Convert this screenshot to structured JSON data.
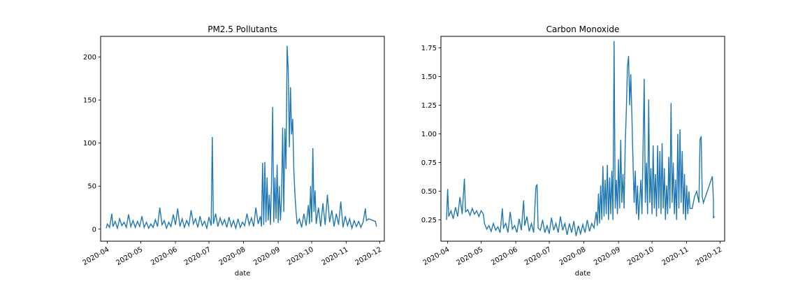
{
  "chart_data": [
    {
      "type": "line",
      "title": "PM2.5 Pollutants",
      "xlabel": "date",
      "ylabel": "",
      "xlim": [
        "2020-03-26",
        "2020-12-05"
      ],
      "ylim": [
        -14,
        224
      ],
      "x_ticks": [
        "2020-04",
        "2020-05",
        "2020-06",
        "2020-07",
        "2020-08",
        "2020-09",
        "2020-10",
        "2020-11",
        "2020-12"
      ],
      "y_ticks": [
        0,
        50,
        100,
        150,
        200
      ],
      "color": "#1f77b4",
      "points": [
        [
          "2020-03-31",
          1
        ],
        [
          "2020-04-01",
          6
        ],
        [
          "2020-04-03",
          2
        ],
        [
          "2020-04-05",
          18
        ],
        [
          "2020-04-06",
          3
        ],
        [
          "2020-04-08",
          9
        ],
        [
          "2020-04-10",
          1
        ],
        [
          "2020-04-12",
          12
        ],
        [
          "2020-04-14",
          4
        ],
        [
          "2020-04-16",
          8
        ],
        [
          "2020-04-18",
          2
        ],
        [
          "2020-04-20",
          17
        ],
        [
          "2020-04-22",
          3
        ],
        [
          "2020-04-24",
          10
        ],
        [
          "2020-04-26",
          2
        ],
        [
          "2020-04-28",
          9
        ],
        [
          "2020-04-30",
          3
        ],
        [
          "2020-05-02",
          15
        ],
        [
          "2020-05-04",
          2
        ],
        [
          "2020-05-06",
          8
        ],
        [
          "2020-05-08",
          1
        ],
        [
          "2020-05-10",
          6
        ],
        [
          "2020-05-12",
          2
        ],
        [
          "2020-05-14",
          11
        ],
        [
          "2020-05-16",
          3
        ],
        [
          "2020-05-18",
          25
        ],
        [
          "2020-05-20",
          5
        ],
        [
          "2020-05-22",
          10
        ],
        [
          "2020-05-24",
          1
        ],
        [
          "2020-05-26",
          8
        ],
        [
          "2020-05-28",
          3
        ],
        [
          "2020-05-30",
          17
        ],
        [
          "2020-06-01",
          5
        ],
        [
          "2020-06-03",
          24
        ],
        [
          "2020-06-05",
          3
        ],
        [
          "2020-06-07",
          12
        ],
        [
          "2020-06-09",
          2
        ],
        [
          "2020-06-11",
          10
        ],
        [
          "2020-06-13",
          4
        ],
        [
          "2020-06-15",
          22
        ],
        [
          "2020-06-17",
          6
        ],
        [
          "2020-06-19",
          12
        ],
        [
          "2020-06-21",
          2
        ],
        [
          "2020-06-23",
          15
        ],
        [
          "2020-06-25",
          4
        ],
        [
          "2020-06-27",
          9
        ],
        [
          "2020-06-29",
          1
        ],
        [
          "2020-07-01",
          14
        ],
        [
          "2020-07-03",
          4
        ],
        [
          "2020-07-04",
          107
        ],
        [
          "2020-07-05",
          6
        ],
        [
          "2020-07-07",
          18
        ],
        [
          "2020-07-09",
          3
        ],
        [
          "2020-07-11",
          13
        ],
        [
          "2020-07-13",
          5
        ],
        [
          "2020-07-15",
          11
        ],
        [
          "2020-07-17",
          2
        ],
        [
          "2020-07-19",
          14
        ],
        [
          "2020-07-21",
          3
        ],
        [
          "2020-07-23",
          10
        ],
        [
          "2020-07-25",
          1
        ],
        [
          "2020-07-27",
          12
        ],
        [
          "2020-07-29",
          2
        ],
        [
          "2020-07-31",
          8
        ],
        [
          "2020-08-02",
          4
        ],
        [
          "2020-08-04",
          18
        ],
        [
          "2020-08-06",
          5
        ],
        [
          "2020-08-08",
          13
        ],
        [
          "2020-08-10",
          3
        ],
        [
          "2020-08-12",
          25
        ],
        [
          "2020-08-14",
          6
        ],
        [
          "2020-08-16",
          15
        ],
        [
          "2020-08-17",
          3
        ],
        [
          "2020-08-18",
          77
        ],
        [
          "2020-08-19",
          5
        ],
        [
          "2020-08-20",
          78
        ],
        [
          "2020-08-21",
          8
        ],
        [
          "2020-08-22",
          60
        ],
        [
          "2020-08-23",
          10
        ],
        [
          "2020-08-24",
          40
        ],
        [
          "2020-08-25",
          5
        ],
        [
          "2020-08-26",
          55
        ],
        [
          "2020-08-27",
          142
        ],
        [
          "2020-08-28",
          8
        ],
        [
          "2020-08-29",
          60
        ],
        [
          "2020-08-30",
          12
        ],
        [
          "2020-08-31",
          75
        ],
        [
          "2020-09-01",
          7
        ],
        [
          "2020-09-02",
          50
        ],
        [
          "2020-09-03",
          10
        ],
        [
          "2020-09-04",
          36
        ],
        [
          "2020-09-05",
          118
        ],
        [
          "2020-09-06",
          20
        ],
        [
          "2020-09-07",
          117
        ],
        [
          "2020-09-08",
          70
        ],
        [
          "2020-09-09",
          213
        ],
        [
          "2020-09-10",
          184
        ],
        [
          "2020-09-11",
          95
        ],
        [
          "2020-09-12",
          165
        ],
        [
          "2020-09-13",
          110
        ],
        [
          "2020-09-14",
          128
        ],
        [
          "2020-09-15",
          68
        ],
        [
          "2020-09-16",
          40
        ],
        [
          "2020-09-17",
          20
        ],
        [
          "2020-09-18",
          6
        ],
        [
          "2020-09-20",
          12
        ],
        [
          "2020-09-22",
          2
        ],
        [
          "2020-09-24",
          18
        ],
        [
          "2020-09-26",
          4
        ],
        [
          "2020-09-28",
          28
        ],
        [
          "2020-09-29",
          6
        ],
        [
          "2020-09-30",
          50
        ],
        [
          "2020-10-01",
          8
        ],
        [
          "2020-10-02",
          94
        ],
        [
          "2020-10-03",
          20
        ],
        [
          "2020-10-04",
          45
        ],
        [
          "2020-10-05",
          6
        ],
        [
          "2020-10-07",
          25
        ],
        [
          "2020-10-09",
          3
        ],
        [
          "2020-10-11",
          30
        ],
        [
          "2020-10-13",
          5
        ],
        [
          "2020-10-15",
          40
        ],
        [
          "2020-10-17",
          8
        ],
        [
          "2020-10-19",
          22
        ],
        [
          "2020-10-21",
          3
        ],
        [
          "2020-10-23",
          18
        ],
        [
          "2020-10-25",
          5
        ],
        [
          "2020-10-27",
          32
        ],
        [
          "2020-10-29",
          2
        ],
        [
          "2020-10-31",
          15
        ],
        [
          "2020-11-02",
          4
        ],
        [
          "2020-11-04",
          12
        ],
        [
          "2020-11-06",
          1
        ],
        [
          "2020-11-08",
          10
        ],
        [
          "2020-11-10",
          3
        ],
        [
          "2020-11-12",
          9
        ],
        [
          "2020-11-14",
          2
        ],
        [
          "2020-11-16",
          8
        ],
        [
          "2020-11-18",
          24
        ],
        [
          "2020-11-19",
          10
        ],
        [
          "2020-11-21",
          12
        ],
        [
          "2020-11-27",
          9
        ],
        [
          "2020-11-28",
          3
        ]
      ]
    },
    {
      "type": "line",
      "title": "Carbon Monoxide",
      "xlabel": "date",
      "ylabel": "",
      "xlim": [
        "2020-03-26",
        "2020-12-05"
      ],
      "ylim": [
        0.065,
        1.85
      ],
      "x_ticks": [
        "2020-04",
        "2020-05",
        "2020-06",
        "2020-07",
        "2020-08",
        "2020-09",
        "2020-10",
        "2020-11",
        "2020-12"
      ],
      "y_ticks": [
        0.25,
        0.5,
        0.75,
        1.0,
        1.25,
        1.5,
        1.75
      ],
      "y_tick_labels": [
        "0.25",
        "0.50",
        "0.75",
        "1.00",
        "1.25",
        "1.50",
        "1.75"
      ],
      "color": "#1f77b4",
      "points": [
        [
          "2020-03-31",
          0.25
        ],
        [
          "2020-04-01",
          0.52
        ],
        [
          "2020-04-02",
          0.28
        ],
        [
          "2020-04-04",
          0.33
        ],
        [
          "2020-04-06",
          0.26
        ],
        [
          "2020-04-08",
          0.36
        ],
        [
          "2020-04-10",
          0.28
        ],
        [
          "2020-04-12",
          0.45
        ],
        [
          "2020-04-14",
          0.3
        ],
        [
          "2020-04-16",
          0.61
        ],
        [
          "2020-04-17",
          0.32
        ],
        [
          "2020-04-19",
          0.34
        ],
        [
          "2020-04-21",
          0.29
        ],
        [
          "2020-04-23",
          0.35
        ],
        [
          "2020-04-25",
          0.3
        ],
        [
          "2020-04-27",
          0.33
        ],
        [
          "2020-04-29",
          0.28
        ],
        [
          "2020-05-01",
          0.33
        ],
        [
          "2020-05-03",
          0.3
        ],
        [
          "2020-05-04",
          0.22
        ],
        [
          "2020-05-06",
          0.17
        ],
        [
          "2020-05-08",
          0.2
        ],
        [
          "2020-05-10",
          0.15
        ],
        [
          "2020-05-12",
          0.22
        ],
        [
          "2020-05-14",
          0.16
        ],
        [
          "2020-05-16",
          0.19
        ],
        [
          "2020-05-18",
          0.14
        ],
        [
          "2020-05-20",
          0.35
        ],
        [
          "2020-05-21",
          0.18
        ],
        [
          "2020-05-23",
          0.22
        ],
        [
          "2020-05-25",
          0.14
        ],
        [
          "2020-05-27",
          0.32
        ],
        [
          "2020-05-29",
          0.17
        ],
        [
          "2020-05-31",
          0.2
        ],
        [
          "2020-06-02",
          0.14
        ],
        [
          "2020-06-04",
          0.26
        ],
        [
          "2020-06-06",
          0.16
        ],
        [
          "2020-06-08",
          0.42
        ],
        [
          "2020-06-09",
          0.2
        ],
        [
          "2020-06-11",
          0.28
        ],
        [
          "2020-06-13",
          0.15
        ],
        [
          "2020-06-15",
          0.22
        ],
        [
          "2020-06-17",
          0.14
        ],
        [
          "2020-06-19",
          0.54
        ],
        [
          "2020-06-20",
          0.56
        ],
        [
          "2020-06-21",
          0.18
        ],
        [
          "2020-06-23",
          0.16
        ],
        [
          "2020-06-25",
          0.25
        ],
        [
          "2020-06-27",
          0.14
        ],
        [
          "2020-06-29",
          0.2
        ],
        [
          "2020-07-01",
          0.13
        ],
        [
          "2020-07-03",
          0.27
        ],
        [
          "2020-07-05",
          0.16
        ],
        [
          "2020-07-07",
          0.22
        ],
        [
          "2020-07-09",
          0.14
        ],
        [
          "2020-07-11",
          0.28
        ],
        [
          "2020-07-13",
          0.16
        ],
        [
          "2020-07-15",
          0.22
        ],
        [
          "2020-07-17",
          0.12
        ],
        [
          "2020-07-19",
          0.22
        ],
        [
          "2020-07-21",
          0.14
        ],
        [
          "2020-07-23",
          0.24
        ],
        [
          "2020-07-25",
          0.11
        ],
        [
          "2020-07-27",
          0.2
        ],
        [
          "2020-07-29",
          0.13
        ],
        [
          "2020-07-31",
          0.21
        ],
        [
          "2020-08-02",
          0.14
        ],
        [
          "2020-08-04",
          0.25
        ],
        [
          "2020-08-06",
          0.15
        ],
        [
          "2020-08-08",
          0.22
        ],
        [
          "2020-08-10",
          0.18
        ],
        [
          "2020-08-12",
          0.32
        ],
        [
          "2020-08-13",
          0.2
        ],
        [
          "2020-08-14",
          0.48
        ],
        [
          "2020-08-15",
          0.22
        ],
        [
          "2020-08-16",
          0.55
        ],
        [
          "2020-08-17",
          0.25
        ],
        [
          "2020-08-18",
          0.72
        ],
        [
          "2020-08-19",
          0.28
        ],
        [
          "2020-08-20",
          0.6
        ],
        [
          "2020-08-21",
          0.3
        ],
        [
          "2020-08-22",
          0.73
        ],
        [
          "2020-08-23",
          0.25
        ],
        [
          "2020-08-24",
          0.62
        ],
        [
          "2020-08-25",
          0.3
        ],
        [
          "2020-08-26",
          0.68
        ],
        [
          "2020-08-27",
          0.25
        ],
        [
          "2020-08-28",
          1.81
        ],
        [
          "2020-08-29",
          0.35
        ],
        [
          "2020-08-30",
          0.6
        ],
        [
          "2020-08-31",
          0.3
        ],
        [
          "2020-09-01",
          0.78
        ],
        [
          "2020-09-02",
          0.35
        ],
        [
          "2020-09-03",
          0.95
        ],
        [
          "2020-09-04",
          0.4
        ],
        [
          "2020-09-05",
          0.65
        ],
        [
          "2020-09-06",
          0.35
        ],
        [
          "2020-09-07",
          0.9
        ],
        [
          "2020-09-08",
          1.2
        ],
        [
          "2020-09-09",
          1.58
        ],
        [
          "2020-09-10",
          1.68
        ],
        [
          "2020-09-11",
          1.25
        ],
        [
          "2020-09-12",
          1.52
        ],
        [
          "2020-09-13",
          1.15
        ],
        [
          "2020-09-14",
          0.75
        ],
        [
          "2020-09-15",
          0.4
        ],
        [
          "2020-09-16",
          0.68
        ],
        [
          "2020-09-17",
          0.3
        ],
        [
          "2020-09-18",
          0.55
        ],
        [
          "2020-09-19",
          0.25
        ],
        [
          "2020-09-21",
          0.6
        ],
        [
          "2020-09-22",
          0.3
        ],
        [
          "2020-09-24",
          1.48
        ],
        [
          "2020-09-25",
          0.4
        ],
        [
          "2020-09-26",
          0.75
        ],
        [
          "2020-09-27",
          0.3
        ],
        [
          "2020-09-28",
          1.3
        ],
        [
          "2020-09-29",
          0.4
        ],
        [
          "2020-09-30",
          0.7
        ],
        [
          "2020-10-01",
          0.3
        ],
        [
          "2020-10-02",
          0.9
        ],
        [
          "2020-10-03",
          0.35
        ],
        [
          "2020-10-04",
          0.65
        ],
        [
          "2020-10-05",
          0.28
        ],
        [
          "2020-10-06",
          0.9
        ],
        [
          "2020-10-07",
          0.35
        ],
        [
          "2020-10-08",
          0.85
        ],
        [
          "2020-10-09",
          0.3
        ],
        [
          "2020-10-10",
          0.92
        ],
        [
          "2020-10-11",
          0.35
        ],
        [
          "2020-10-12",
          0.7
        ],
        [
          "2020-10-13",
          0.25
        ],
        [
          "2020-10-14",
          0.55
        ],
        [
          "2020-10-15",
          0.3
        ],
        [
          "2020-10-16",
          0.8
        ],
        [
          "2020-10-17",
          0.35
        ],
        [
          "2020-10-18",
          1.27
        ],
        [
          "2020-10-19",
          0.4
        ],
        [
          "2020-10-20",
          0.75
        ],
        [
          "2020-10-21",
          0.3
        ],
        [
          "2020-10-22",
          0.6
        ],
        [
          "2020-10-23",
          0.25
        ],
        [
          "2020-10-24",
          1.0
        ],
        [
          "2020-10-25",
          0.35
        ],
        [
          "2020-10-26",
          1.04
        ],
        [
          "2020-10-27",
          0.4
        ],
        [
          "2020-10-28",
          0.85
        ],
        [
          "2020-10-29",
          0.3
        ],
        [
          "2020-10-30",
          0.65
        ],
        [
          "2020-10-31",
          0.25
        ],
        [
          "2020-11-01",
          0.55
        ],
        [
          "2020-11-02",
          0.3
        ],
        [
          "2020-11-03",
          0.5
        ],
        [
          "2020-11-04",
          0.35
        ],
        [
          "2020-11-06",
          0.35
        ],
        [
          "2020-11-08",
          0.45
        ],
        [
          "2020-11-10",
          0.5
        ],
        [
          "2020-11-12",
          0.4
        ],
        [
          "2020-11-13",
          0.95
        ],
        [
          "2020-11-14",
          0.98
        ],
        [
          "2020-11-15",
          0.45
        ],
        [
          "2020-11-16",
          0.4
        ],
        [
          "2020-11-24",
          0.63
        ],
        [
          "2020-11-25",
          0.41
        ],
        [
          "2020-11-25",
          0.27
        ],
        [
          "2020-11-26",
          0.28
        ]
      ]
    }
  ]
}
